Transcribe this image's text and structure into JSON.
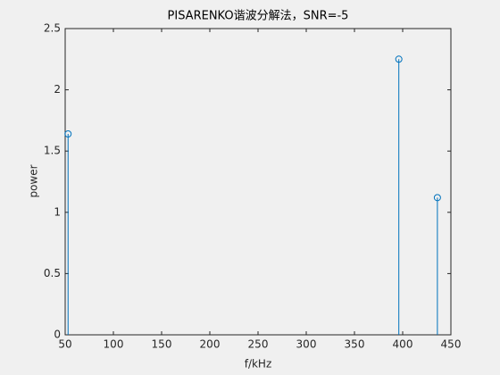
{
  "chart_data": {
    "type": "stem",
    "title": "PISARENKO谐波分解法，SNR=-5",
    "x_label": "f/kHz",
    "y_label": "power",
    "x": [
      53,
      396,
      436
    ],
    "values": [
      1.64,
      2.25,
      1.12
    ],
    "color": "#0072bd",
    "xlim": [
      50,
      450
    ],
    "xticks": [
      50,
      100,
      150,
      200,
      250,
      300,
      350,
      400,
      450
    ],
    "ylim": [
      0,
      2.5
    ],
    "yticks": [
      0,
      0.5,
      1,
      1.5,
      2,
      2.5
    ],
    "grid": false
  }
}
